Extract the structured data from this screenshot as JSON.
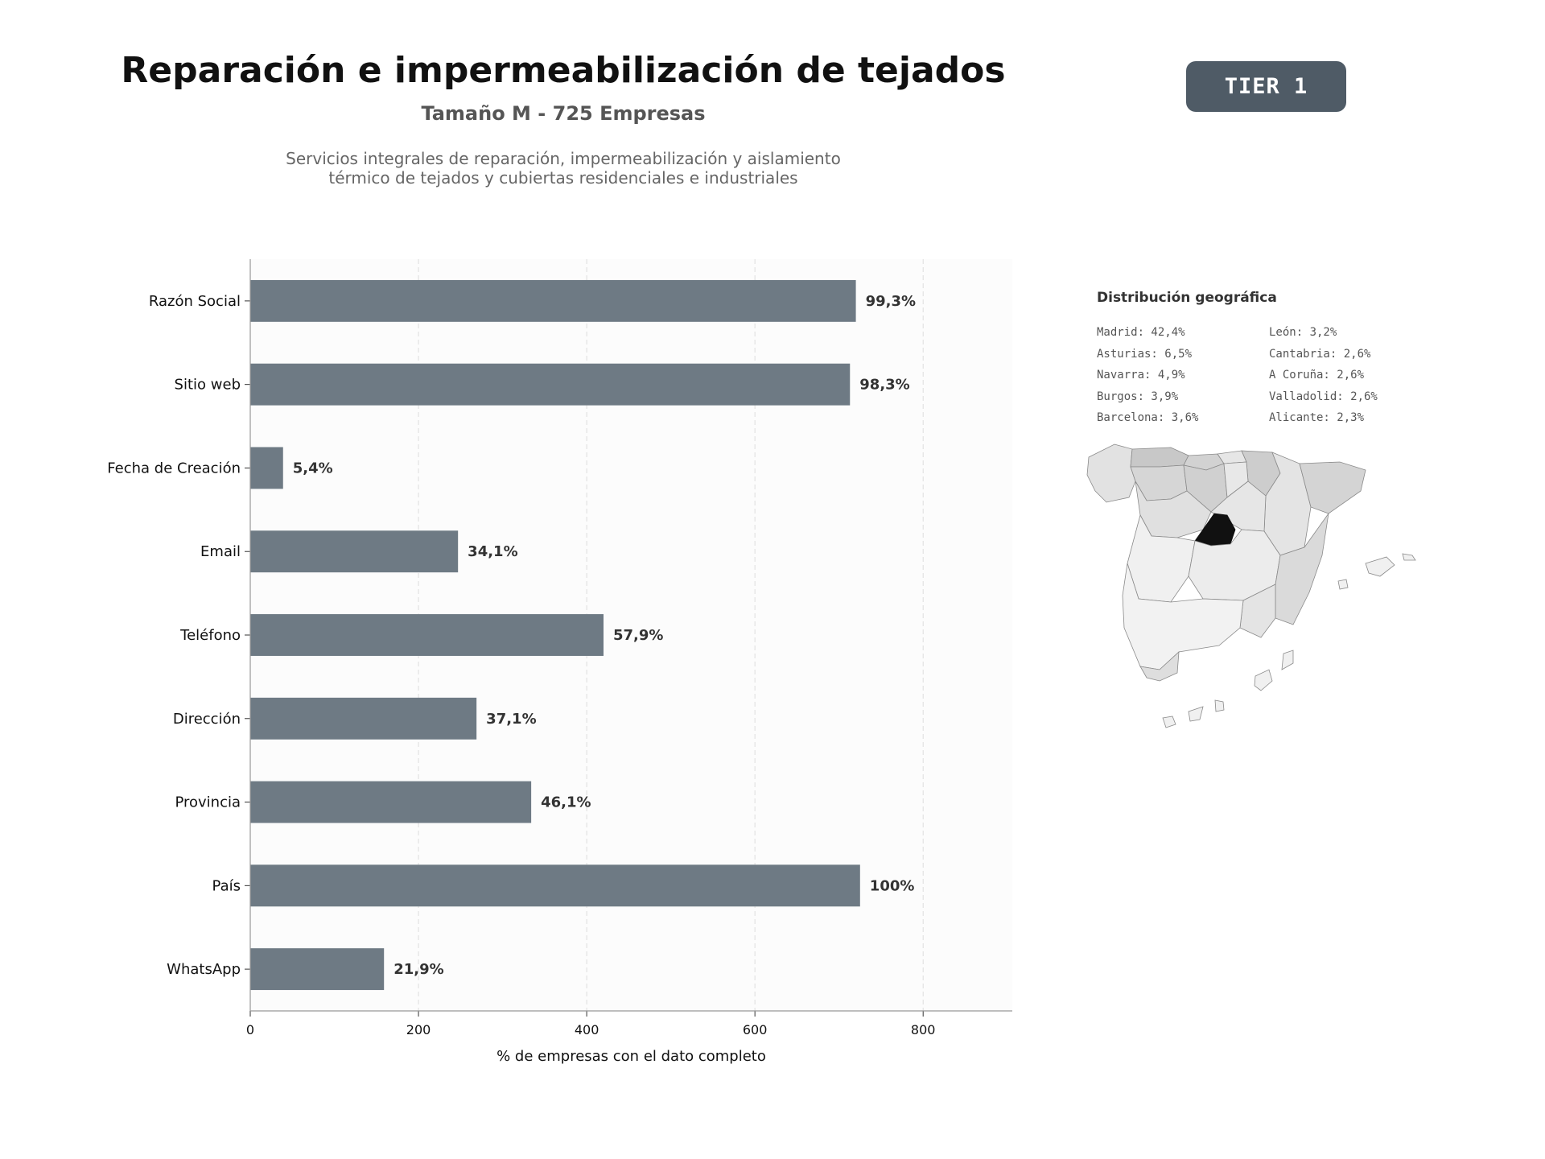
{
  "header": {
    "title": "Reparación e impermeabilización de tejados",
    "subtitle": "Tamaño M - 725 Empresas",
    "description_line1": "Servicios integrales de reparación, impermeabilización y aislamiento",
    "description_line2": "térmico de tejados y cubiertas residenciales e industriales",
    "tier": "TIER 1"
  },
  "chart_data": {
    "type": "bar",
    "orientation": "horizontal",
    "categories": [
      "Razón Social",
      "Sitio web",
      "Fecha de Creación",
      "Email",
      "Teléfono",
      "Dirección",
      "Provincia",
      "País",
      "WhatsApp"
    ],
    "values": [
      720,
      713,
      39,
      247,
      420,
      269,
      334,
      725,
      159
    ],
    "data_labels": [
      "99,3%",
      "98,3%",
      "5,4%",
      "34,1%",
      "57,9%",
      "37,1%",
      "46,1%",
      "100%",
      "21,9%"
    ],
    "xlabel": "% de empresas con el dato completo",
    "xlim": [
      0,
      906
    ],
    "xticks": [
      0,
      200,
      400,
      600,
      800
    ],
    "grid": "vertical dashed",
    "colors": {
      "bar": "#6e7a84",
      "plot_bg": "#fcfcfc",
      "label": "#333333"
    }
  },
  "geo": {
    "title": "Distribución geográfica",
    "left_column": [
      "Madrid: 42,4%",
      "Asturias: 6,5%",
      "Navarra: 4,9%",
      "Burgos: 3,9%",
      "Barcelona: 3,6%"
    ],
    "right_column": [
      "León: 3,2%",
      "Cantabria: 2,6%",
      "A Coruña: 2,6%",
      "Valladolid: 2,6%",
      "Alicante: 2,3%"
    ],
    "highlight_region": "Madrid",
    "colors": {
      "highlight": "#111111",
      "land": "#efefef",
      "land_mid": "#d8d8d8",
      "border": "#888888"
    }
  }
}
